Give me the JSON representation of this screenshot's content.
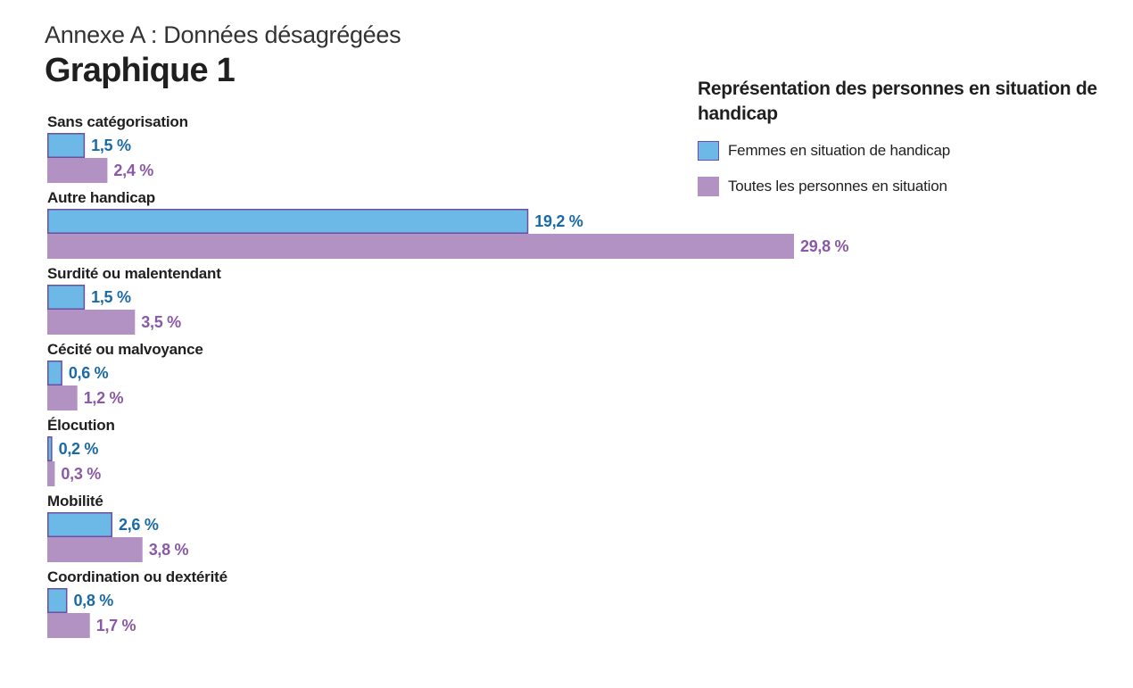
{
  "header": {
    "subtitle": "Annexe A : Données désagrégées",
    "title": "Graphique 1"
  },
  "chart_data": {
    "type": "bar",
    "orientation": "horizontal",
    "title": "Représentation des personnes en situation de handicap",
    "categories": [
      "Sans catégorisation",
      "Autre handicap",
      "Surdité ou malentendant",
      "Cécité ou malvoyance",
      "Élocution",
      "Mobilité",
      "Coordination ou dextérité"
    ],
    "series": [
      {
        "name": "Femmes en situation de handicap",
        "values": [
          1.5,
          19.2,
          1.5,
          0.6,
          0.2,
          2.6,
          0.8
        ],
        "labels": [
          "1,5 %",
          "19,2 %",
          "1,5 %",
          "0,6 %",
          "0,2 %",
          "2,6 %",
          "0,8 %"
        ],
        "color": "#6cb8e6",
        "stroke": "#6a4fa3",
        "label_color": "#1a6aa6"
      },
      {
        "name": "Toutes les personnes en situation",
        "values": [
          2.4,
          29.8,
          3.5,
          1.2,
          0.3,
          3.8,
          1.7
        ],
        "labels": [
          "2,4 %",
          "29,8 %",
          "3,5 %",
          "1,2 %",
          "0,3 %",
          "3,8 %",
          "1,7 %"
        ],
        "color": "#b192c3",
        "stroke": "none",
        "label_color": "#8a5aa6"
      }
    ],
    "legend_position": "top-right",
    "grid": false,
    "xlim": [
      0,
      30
    ]
  }
}
